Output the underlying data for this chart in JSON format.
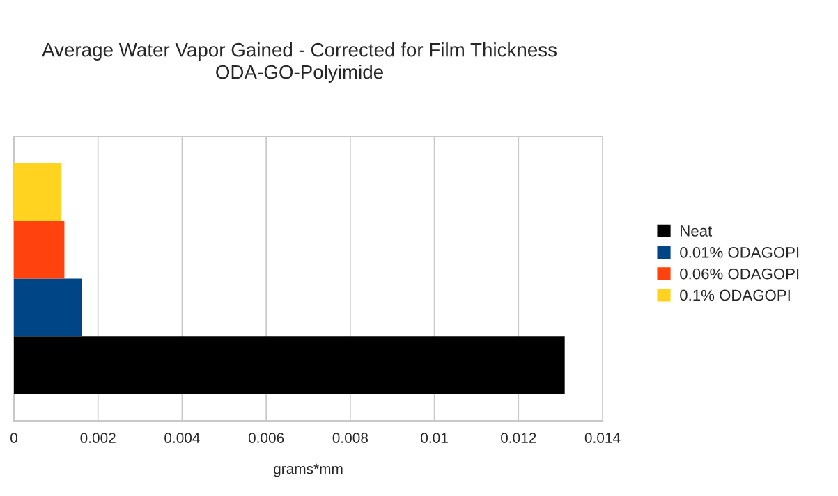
{
  "chart_data": {
    "type": "bar",
    "orientation": "horizontal",
    "title": "Average Water Vapor Gained - Corrected for Film Thickness\nODA-GO-Polyimide",
    "xlabel": "grams*mm",
    "categories": [
      null
    ],
    "series": [
      {
        "name": "Neat",
        "color": "#000000",
        "values": [
          0.0131
        ]
      },
      {
        "name": "0.01% ODAGOPI",
        "color": "#004586",
        "values": [
          0.00161
        ]
      },
      {
        "name": "0.06% ODAGOPI",
        "color": "#ff420e",
        "values": [
          0.0012
        ]
      },
      {
        "name": "0.1% ODAGOPI",
        "color": "#ffd320",
        "values": [
          0.00113
        ]
      }
    ],
    "xlim": [
      0,
      0.014
    ],
    "xticks": [
      0,
      0.002,
      0.004,
      0.006,
      0.008,
      0.01,
      0.012,
      0.014
    ],
    "grid": "x",
    "legend": "right"
  }
}
